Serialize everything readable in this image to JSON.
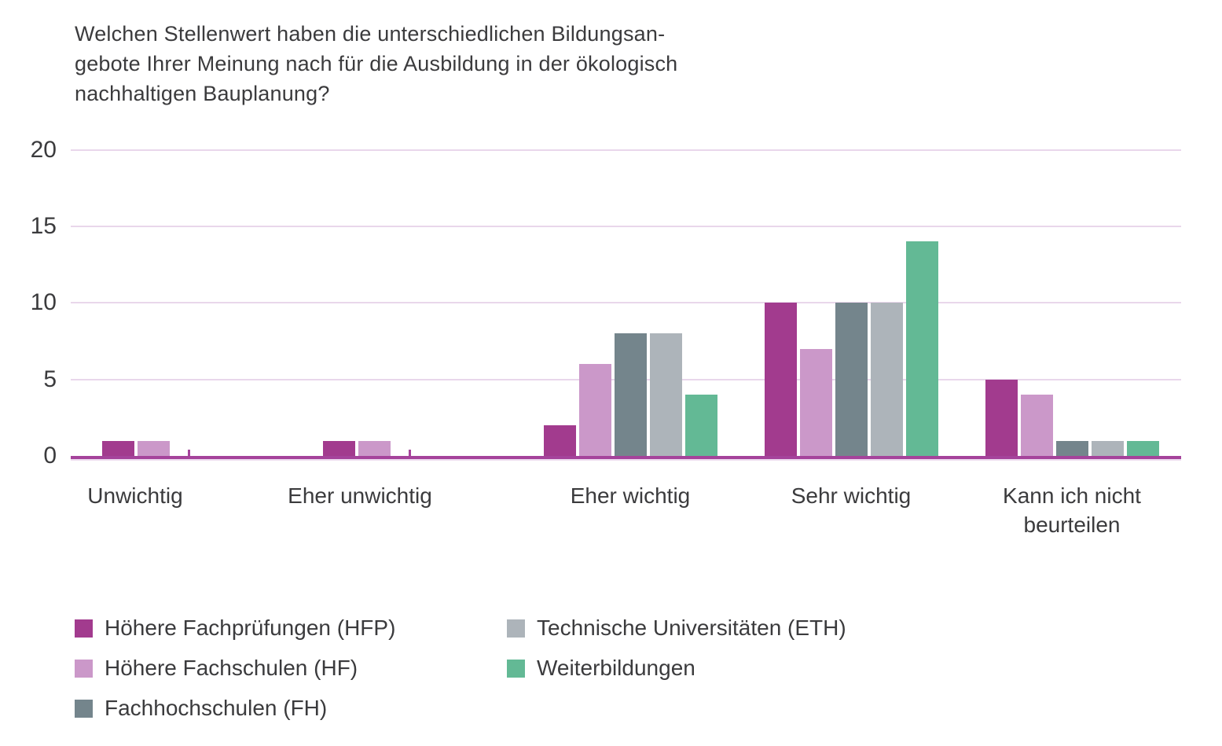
{
  "title": {
    "text": "Welchen Stellenwert haben die unterschiedlichen Bildungsan-\ngebote Ihrer Meinung nach für die Ausbildung in der ökologisch\nnachhaltigen Bauplanung?"
  },
  "colors": {
    "background": "#ffffff",
    "text": "#3b3b3d",
    "gridline": "#e9d7eb",
    "axis": "#a5439b",
    "axis_sub": "#eddbef"
  },
  "chart_data": {
    "type": "bar",
    "title": "Welchen Stellenwert haben die unterschiedlichen Bildungsangebote Ihrer Meinung nach für die Ausbildung in der ökologisch nachhaltigen Bauplanung?",
    "categories": [
      "Unwichtig",
      "Eher unwichtig",
      "Eher wichtig",
      "Sehr wichtig",
      "Kann ich nicht beurteilen"
    ],
    "series": [
      {
        "name": "Höhere Fachprüfungen (HFP)",
        "color": "#a23b8e",
        "values": [
          1,
          1,
          2,
          10,
          5
        ]
      },
      {
        "name": "Höhere Fachschulen (HF)",
        "color": "#cb98c9",
        "values": [
          1,
          1,
          6,
          7,
          4
        ]
      },
      {
        "name": "Fachhochschulen (FH)",
        "color": "#74858c",
        "values": [
          0,
          0,
          8,
          10,
          1
        ]
      },
      {
        "name": "Technische Universitäten (ETH)",
        "color": "#adb4ba",
        "values": [
          0,
          0,
          8,
          10,
          1
        ]
      },
      {
        "name": "Weiterbildungen",
        "color": "#63b995",
        "values": [
          0,
          0,
          4,
          14,
          1
        ]
      }
    ],
    "xlabel": "",
    "ylabel": "",
    "ylim": [
      0,
      20
    ],
    "yticks": [
      0,
      5,
      10,
      15,
      20
    ],
    "grid": true,
    "legend_position": "bottom"
  }
}
